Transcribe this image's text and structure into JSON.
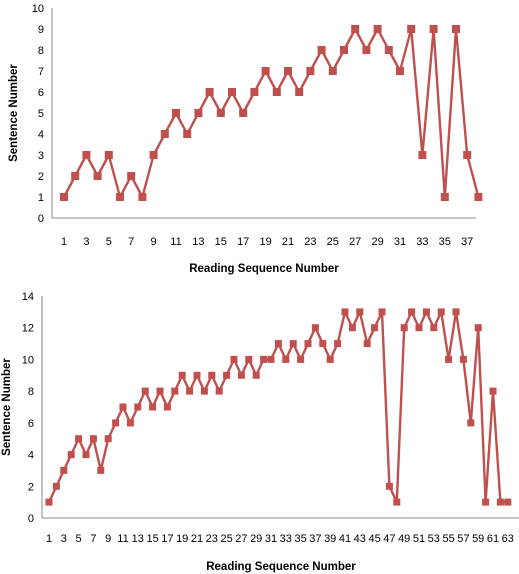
{
  "chart_data": [
    {
      "type": "line",
      "title": "",
      "xlabel": "Reading Sequence Number",
      "ylabel": "Sentence Number",
      "ylim": [
        0,
        10
      ],
      "y_tick_step": 1,
      "x_tick_labels": [
        "1",
        "3",
        "5",
        "7",
        "9",
        "11",
        "13",
        "15",
        "17",
        "19",
        "21",
        "23",
        "25",
        "27",
        "29",
        "31",
        "33",
        "35",
        "37"
      ],
      "grid": false,
      "legend": "none",
      "marker": "square",
      "color": "#C0504D",
      "x": [
        1,
        2,
        3,
        4,
        5,
        6,
        7,
        8,
        9,
        10,
        11,
        12,
        13,
        14,
        15,
        16,
        17,
        18,
        19,
        20,
        21,
        22,
        23,
        24,
        25,
        26,
        27,
        28,
        29,
        30,
        31,
        32,
        33,
        34,
        35,
        36,
        37,
        38
      ],
      "series": [
        {
          "values": [
            1,
            2,
            3,
            2,
            3,
            1,
            2,
            1,
            3,
            4,
            5,
            4,
            5,
            6,
            5,
            6,
            5,
            6,
            7,
            6,
            7,
            6,
            7,
            8,
            7,
            8,
            9,
            8,
            9,
            8,
            7,
            9,
            3,
            9,
            1,
            9,
            3,
            1
          ]
        }
      ]
    },
    {
      "type": "line",
      "title": "",
      "xlabel": "Reading Sequence Number",
      "ylabel": "Sentence Number",
      "ylim": [
        0,
        14
      ],
      "y_tick_step": 2,
      "x_tick_labels": [
        "1",
        "3",
        "5",
        "7",
        "9",
        "11",
        "13",
        "15",
        "17",
        "19",
        "21",
        "23",
        "25",
        "27",
        "29",
        "31",
        "33",
        "35",
        "37",
        "39",
        "41",
        "43",
        "45",
        "47",
        "49",
        "51",
        "53",
        "55",
        "57",
        "59",
        "61",
        "63"
      ],
      "grid": false,
      "legend": "none",
      "marker": "square",
      "color": "#C0504D",
      "x": [
        1,
        2,
        3,
        4,
        5,
        6,
        7,
        8,
        9,
        10,
        11,
        12,
        13,
        14,
        15,
        16,
        17,
        18,
        19,
        20,
        21,
        22,
        23,
        24,
        25,
        26,
        27,
        28,
        29,
        30,
        31,
        32,
        33,
        34,
        35,
        36,
        37,
        38,
        39,
        40,
        41,
        42,
        43,
        44,
        45,
        46,
        47,
        48,
        49,
        50,
        51,
        52,
        53,
        54,
        55,
        56,
        57,
        58,
        59,
        60,
        61,
        62,
        63
      ],
      "series": [
        {
          "values": [
            1,
            2,
            3,
            4,
            5,
            4,
            5,
            3,
            5,
            6,
            7,
            6,
            7,
            8,
            7,
            8,
            7,
            8,
            9,
            8,
            9,
            8,
            9,
            8,
            9,
            10,
            9,
            10,
            9,
            10,
            10,
            11,
            10,
            11,
            10,
            11,
            12,
            11,
            10,
            11,
            13,
            12,
            13,
            11,
            12,
            13,
            2,
            1,
            12,
            13,
            12,
            13,
            12,
            13,
            10,
            13,
            10,
            6,
            12,
            1,
            8,
            1,
            1
          ]
        }
      ]
    }
  ]
}
